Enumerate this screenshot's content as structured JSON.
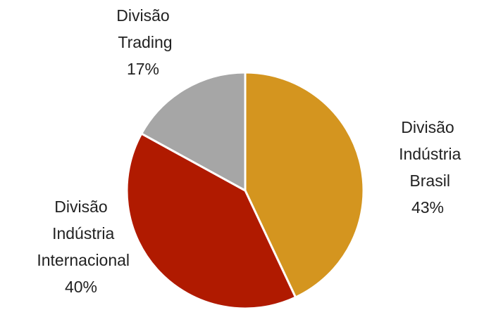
{
  "chart_data": {
    "type": "pie",
    "categories": [
      "Divisão Indústria Brasil",
      "Divisão Indústria Internacional",
      "Divisão Trading"
    ],
    "values": [
      43,
      40,
      17
    ],
    "value_labels": [
      "43%",
      "40%",
      "17%"
    ],
    "colors": [
      "#D4951F",
      "#B01A00",
      "#A6A6A6"
    ]
  }
}
